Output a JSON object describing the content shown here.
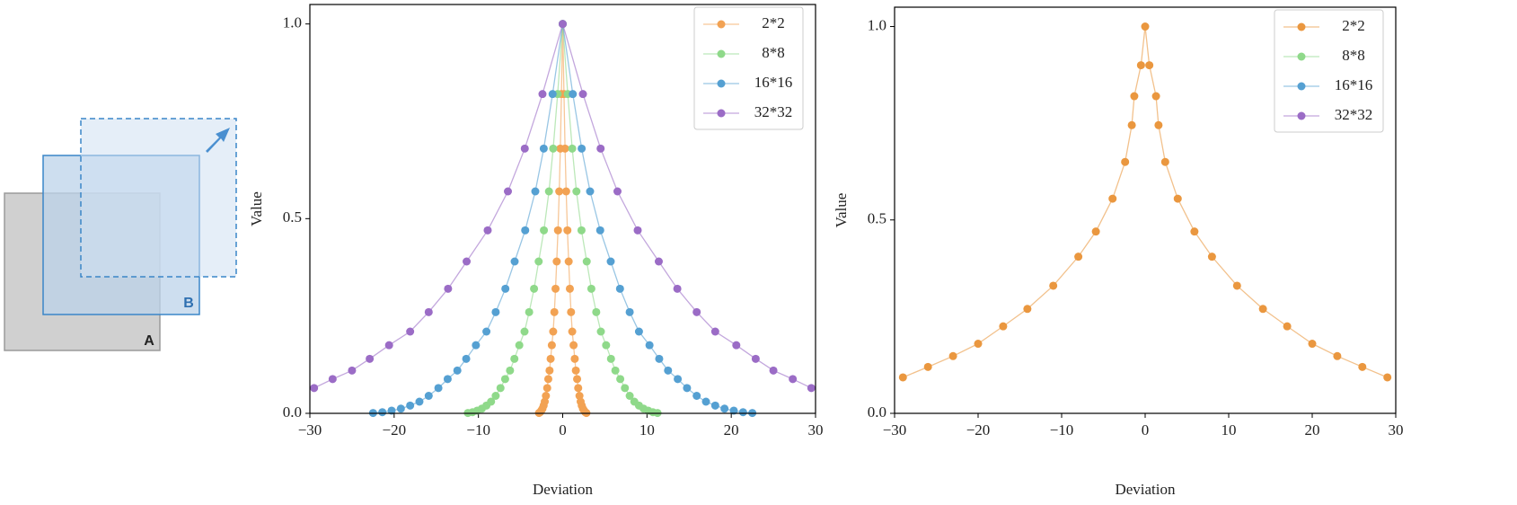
{
  "diagram": {
    "labels": [
      "A",
      "B"
    ]
  },
  "chart_data": [
    {
      "type": "line",
      "xlabel": "Deviation",
      "ylabel": "Value",
      "xlim": [
        -30,
        30
      ],
      "ylim": [
        0,
        1.05
      ],
      "xticks": [
        {
          "value": -30,
          "label": "−30"
        },
        {
          "value": -20,
          "label": "−20"
        },
        {
          "value": -10,
          "label": "−10"
        },
        0,
        10,
        20,
        30
      ],
      "yticks": [
        {
          "value": 0,
          "label": "0.0"
        },
        {
          "value": 0.5,
          "label": "0.5"
        },
        {
          "value": 1,
          "label": "1.0"
        }
      ],
      "legend": "upper right",
      "series": [
        {
          "name": "2*2",
          "color": "#f2a253",
          "x": [
            -2.81,
            -2.68,
            -2.54,
            -2.4,
            -2.26,
            -2.13,
            -1.99,
            -1.84,
            -1.71,
            -1.56,
            -1.43,
            -1.29,
            -1.13,
            -0.99,
            -0.85,
            -0.71,
            -0.56,
            -0.41,
            -0.28,
            -0.15,
            0,
            0.15,
            0.28,
            0.41,
            0.56,
            0.71,
            0.85,
            0.99,
            1.13,
            1.29,
            1.43,
            1.56,
            1.71,
            1.84,
            1.99,
            2.13,
            2.26,
            2.4,
            2.54,
            2.68,
            2.81
          ],
          "values": [
            0.001,
            0.003,
            0.007,
            0.012,
            0.02,
            0.03,
            0.045,
            0.065,
            0.088,
            0.11,
            0.14,
            0.175,
            0.21,
            0.26,
            0.32,
            0.39,
            0.47,
            0.57,
            0.68,
            0.82,
            1,
            0.82,
            0.68,
            0.57,
            0.47,
            0.39,
            0.32,
            0.26,
            0.21,
            0.175,
            0.14,
            0.11,
            0.088,
            0.065,
            0.045,
            0.03,
            0.02,
            0.012,
            0.007,
            0.003,
            0.001
          ]
        },
        {
          "name": "8*8",
          "color": "#8fd98a",
          "x": [
            -11.25,
            -10.7,
            -10.15,
            -9.6,
            -9.05,
            -8.5,
            -7.95,
            -7.38,
            -6.83,
            -6.25,
            -5.73,
            -5.15,
            -4.53,
            -3.98,
            -3.4,
            -2.85,
            -2.23,
            -1.63,
            -1.13,
            -0.6,
            0,
            0.6,
            1.13,
            1.63,
            2.23,
            2.85,
            3.4,
            3.98,
            4.53,
            5.15,
            5.73,
            6.25,
            6.83,
            7.38,
            7.95,
            8.5,
            9.05,
            9.6,
            10.15,
            10.7,
            11.25
          ],
          "values": [
            0.001,
            0.003,
            0.007,
            0.012,
            0.02,
            0.03,
            0.045,
            0.065,
            0.088,
            0.11,
            0.14,
            0.175,
            0.21,
            0.26,
            0.32,
            0.39,
            0.47,
            0.57,
            0.68,
            0.82,
            1,
            0.82,
            0.68,
            0.57,
            0.47,
            0.39,
            0.32,
            0.26,
            0.21,
            0.175,
            0.14,
            0.11,
            0.088,
            0.065,
            0.045,
            0.03,
            0.02,
            0.012,
            0.007,
            0.003,
            0.001
          ]
        },
        {
          "name": "16*16",
          "color": "#55a0d2",
          "x": [
            -22.5,
            -21.4,
            -20.3,
            -19.2,
            -18.1,
            -17,
            -15.9,
            -14.75,
            -13.65,
            -12.5,
            -11.45,
            -10.3,
            -9.05,
            -7.95,
            -6.8,
            -5.7,
            -4.45,
            -3.25,
            -2.25,
            -1.2,
            0,
            1.2,
            2.25,
            3.25,
            4.45,
            5.7,
            6.8,
            7.95,
            9.05,
            10.3,
            11.45,
            12.5,
            13.65,
            14.75,
            15.9,
            17,
            18.1,
            19.2,
            20.3,
            21.4,
            22.5
          ],
          "values": [
            0.001,
            0.003,
            0.007,
            0.012,
            0.02,
            0.03,
            0.045,
            0.065,
            0.088,
            0.11,
            0.14,
            0.175,
            0.21,
            0.26,
            0.32,
            0.39,
            0.47,
            0.57,
            0.68,
            0.82,
            1,
            0.82,
            0.68,
            0.57,
            0.47,
            0.39,
            0.32,
            0.26,
            0.21,
            0.175,
            0.14,
            0.11,
            0.088,
            0.065,
            0.045,
            0.03,
            0.02,
            0.012,
            0.007,
            0.003,
            0.001
          ]
        },
        {
          "name": "32*32",
          "color": "#9b6cc6",
          "x": [
            -29.5,
            -27.3,
            -25,
            -22.9,
            -20.6,
            -18.1,
            -15.9,
            -13.6,
            -11.4,
            -8.9,
            -6.5,
            -4.5,
            -2.4,
            0,
            2.4,
            4.5,
            6.5,
            8.9,
            11.4,
            13.6,
            15.9,
            18.1,
            20.6,
            22.9,
            25,
            27.3,
            29.5
          ],
          "values": [
            0.065,
            0.088,
            0.11,
            0.14,
            0.175,
            0.21,
            0.26,
            0.32,
            0.39,
            0.47,
            0.57,
            0.68,
            0.82,
            1,
            0.82,
            0.68,
            0.57,
            0.47,
            0.39,
            0.32,
            0.26,
            0.21,
            0.175,
            0.14,
            0.11,
            0.088,
            0.065
          ]
        }
      ]
    },
    {
      "type": "line",
      "xlabel": "Deviation",
      "ylabel": "Value",
      "xlim": [
        -30,
        30
      ],
      "ylim": [
        0,
        1.05
      ],
      "xticks": [
        {
          "value": -30,
          "label": "−30"
        },
        {
          "value": -20,
          "label": "−20"
        },
        {
          "value": -10,
          "label": "−10"
        },
        0,
        10,
        20,
        30
      ],
      "yticks": [
        {
          "value": 0,
          "label": "0.0"
        },
        {
          "value": 0.5,
          "label": "0.5"
        },
        {
          "value": 1,
          "label": "1.0"
        }
      ],
      "legend": "upper right",
      "series": [
        {
          "name": "2*2",
          "color": "#ea973f",
          "x": [
            -29,
            -26,
            -23,
            -20,
            -17,
            -14.1,
            -11,
            -8,
            -5.9,
            -3.9,
            -2.4,
            -1.6,
            -1.3,
            -0.5,
            0,
            0.5,
            1.3,
            1.6,
            2.4,
            3.9,
            5.9,
            8,
            11,
            14.1,
            17,
            20,
            23,
            26,
            29
          ],
          "values": [
            0.093,
            0.12,
            0.148,
            0.18,
            0.225,
            0.27,
            0.33,
            0.405,
            0.47,
            0.555,
            0.65,
            0.745,
            0.82,
            0.9,
            1,
            0.9,
            0.82,
            0.745,
            0.65,
            0.555,
            0.47,
            0.405,
            0.33,
            0.27,
            0.225,
            0.18,
            0.148,
            0.12,
            0.093
          ]
        },
        {
          "name": "8*8",
          "color": "#8fd98a",
          "x": [],
          "values": []
        },
        {
          "name": "16*16",
          "color": "#55a0d2",
          "x": [],
          "values": []
        },
        {
          "name": "32*32",
          "color": "#9b6cc6",
          "x": [],
          "values": []
        }
      ]
    }
  ]
}
